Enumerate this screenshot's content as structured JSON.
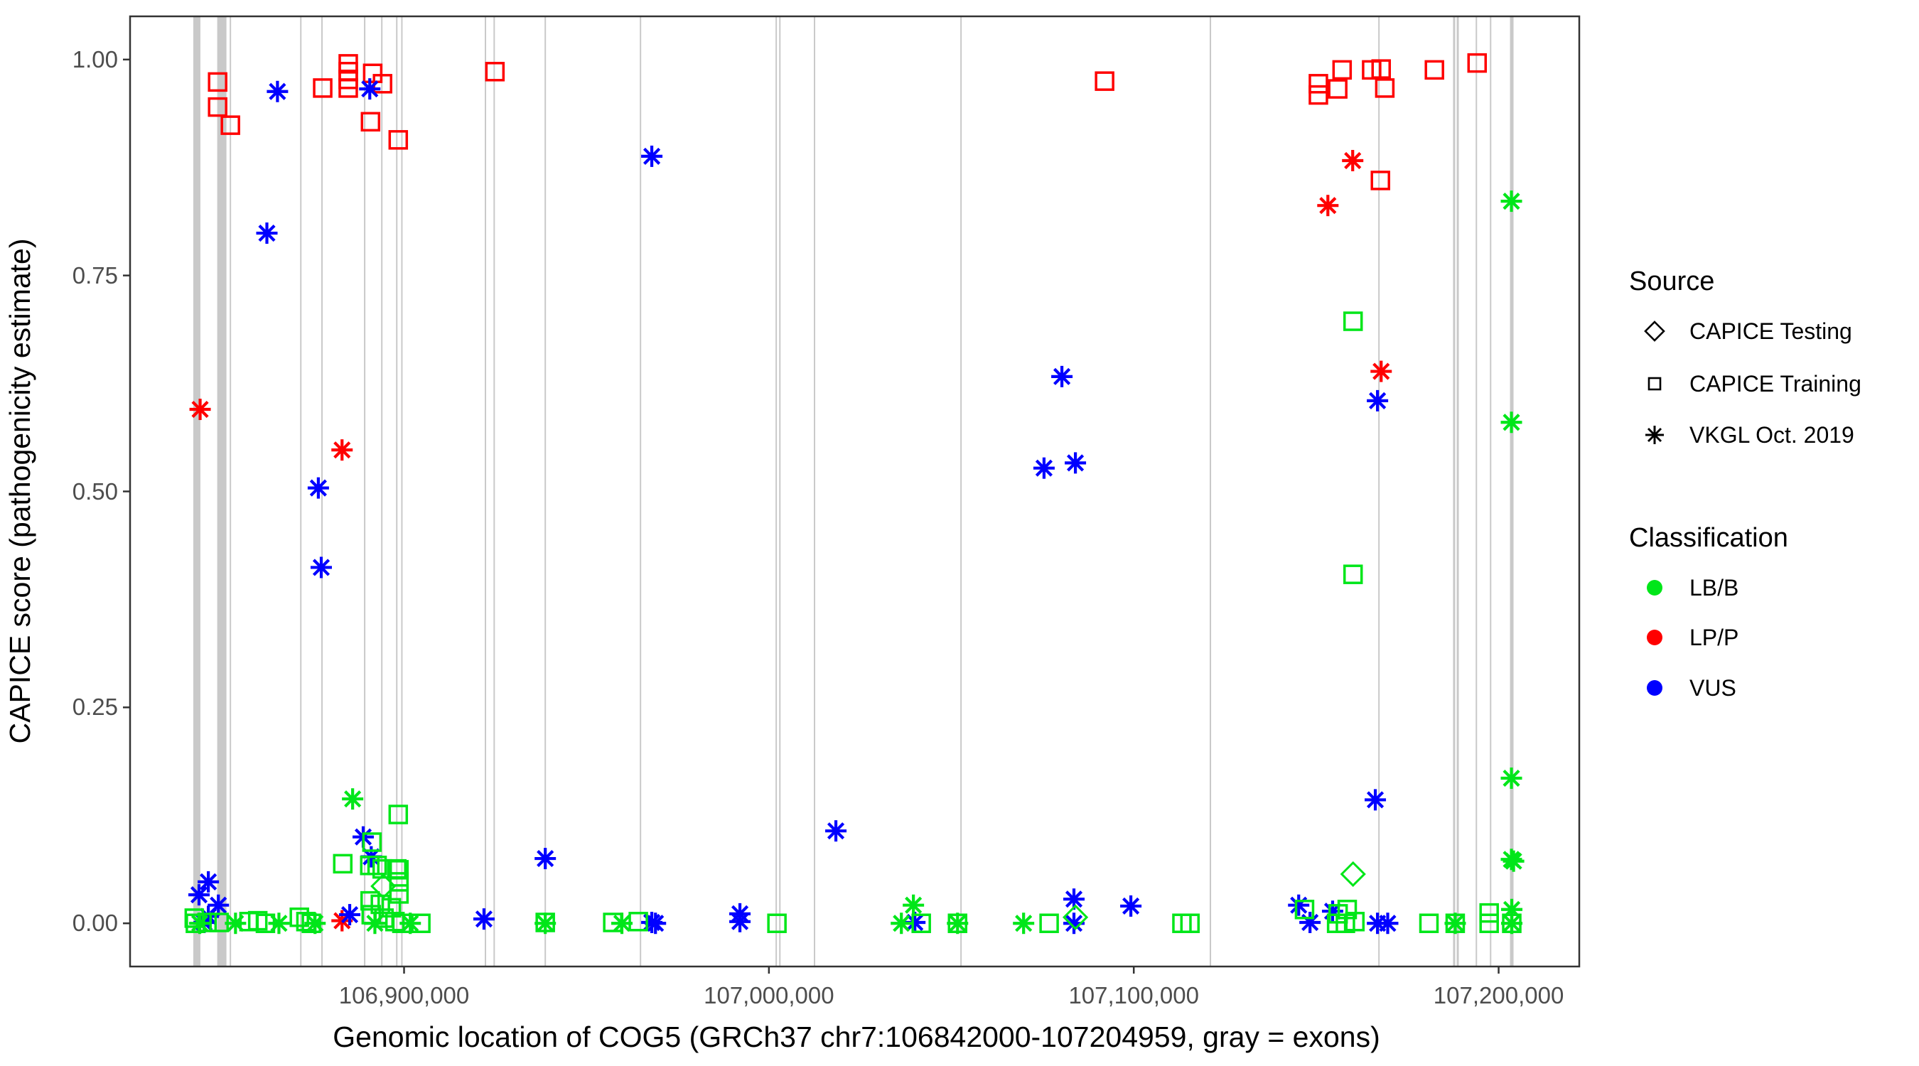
{
  "chart_data": {
    "type": "scatter",
    "xlabel": "Genomic location of COG5 (GRCh37 chr7:106842000-107204959, gray = exons)",
    "ylabel": "CAPICE score (pathogenicity estimate)",
    "x_domain": [
      106824900,
      107222100
    ],
    "y_domain": [
      -0.05,
      1.05
    ],
    "grid": "off",
    "legend_position": "right",
    "x_ticks": [
      {
        "value": 106900000,
        "label": "106,900,000"
      },
      {
        "value": 107000000,
        "label": "107,000,000"
      },
      {
        "value": 107100000,
        "label": "107,100,000"
      },
      {
        "value": 107200000,
        "label": "107,200,000"
      }
    ],
    "y_ticks": [
      {
        "value": 0.0,
        "label": "0.00"
      },
      {
        "value": 0.25,
        "label": "0.25"
      },
      {
        "value": 0.5,
        "label": "0.50"
      },
      {
        "value": 0.75,
        "label": "0.75"
      },
      {
        "value": 1.0,
        "label": "1.00"
      }
    ],
    "colors": {
      "LB": "#00E619",
      "LP": "#FF0000",
      "VUS": "#0000FF",
      "exon": "#C9C9C9",
      "axis": "#333333",
      "tick_text": "#4D4D4D"
    },
    "legend": {
      "source_title": "Source",
      "source_items": [
        {
          "label": "CAPICE Testing",
          "shape": "diamond"
        },
        {
          "label": "CAPICE Training",
          "shape": "square"
        },
        {
          "label": "VKGL Oct. 2019",
          "shape": "asterisk"
        }
      ],
      "classification_title": "Classification",
      "classification_items": [
        {
          "label": "LB/B",
          "color_key": "LB"
        },
        {
          "label": "LP/P",
          "color_key": "LP"
        },
        {
          "label": "VUS",
          "color_key": "VUS"
        }
      ]
    },
    "exons": [
      {
        "pos": 106843200,
        "w": 10
      },
      {
        "pos": 106850050,
        "w": 13
      },
      {
        "pos": 106852400,
        "w": 2
      },
      {
        "pos": 106871700,
        "w": 2
      },
      {
        "pos": 106877500,
        "w": 2
      },
      {
        "pos": 106889200,
        "w": 2
      },
      {
        "pos": 106893900,
        "w": 2
      },
      {
        "pos": 106898000,
        "w": 2
      },
      {
        "pos": 106899400,
        "w": 2
      },
      {
        "pos": 106922300,
        "w": 2
      },
      {
        "pos": 106924700,
        "w": 2
      },
      {
        "pos": 106938700,
        "w": 2
      },
      {
        "pos": 106964800,
        "w": 2
      },
      {
        "pos": 107002000,
        "w": 2
      },
      {
        "pos": 107003000,
        "w": 2
      },
      {
        "pos": 107012500,
        "w": 2
      },
      {
        "pos": 107052650,
        "w": 2
      },
      {
        "pos": 107121000,
        "w": 2
      },
      {
        "pos": 107167200,
        "w": 2
      },
      {
        "pos": 107187800,
        "w": 3
      },
      {
        "pos": 107188800,
        "w": 3
      },
      {
        "pos": 107193900,
        "w": 2
      },
      {
        "pos": 107197800,
        "w": 2
      },
      {
        "pos": 107203600,
        "w": 5
      }
    ],
    "points": [
      [
        106848900,
        0.974,
        "LP",
        "train"
      ],
      [
        106848900,
        0.945,
        "LP",
        "train"
      ],
      [
        106852400,
        0.924,
        "LP",
        "train"
      ],
      [
        106877700,
        0.967,
        "LP",
        "train"
      ],
      [
        106884700,
        0.995,
        "LP",
        "train"
      ],
      [
        106884700,
        0.986,
        "LP",
        "train"
      ],
      [
        106884700,
        0.977,
        "LP",
        "train"
      ],
      [
        106884700,
        0.967,
        "LP",
        "train"
      ],
      [
        106891400,
        0.984,
        "LP",
        "train"
      ],
      [
        106894100,
        0.972,
        "LP",
        "train"
      ],
      [
        106890800,
        0.928,
        "LP",
        "train"
      ],
      [
        106898400,
        0.907,
        "LP",
        "train"
      ],
      [
        106924900,
        0.986,
        "LP",
        "train"
      ],
      [
        107092000,
        0.975,
        "LP",
        "train"
      ],
      [
        107150600,
        0.972,
        "LP",
        "train"
      ],
      [
        107150600,
        0.959,
        "LP",
        "train"
      ],
      [
        107155900,
        0.966,
        "LP",
        "train"
      ],
      [
        107157100,
        0.988,
        "LP",
        "train"
      ],
      [
        107165200,
        0.988,
        "LP",
        "train"
      ],
      [
        107167800,
        0.989,
        "LP",
        "train"
      ],
      [
        107168800,
        0.967,
        "LP",
        "train"
      ],
      [
        107182400,
        0.988,
        "LP",
        "train"
      ],
      [
        107194100,
        0.996,
        "LP",
        "train"
      ],
      [
        107167600,
        0.86,
        "LP",
        "train"
      ],
      [
        106844100,
        0.595,
        "LP",
        "vkgl"
      ],
      [
        106883000,
        0.548,
        "LP",
        "vkgl"
      ],
      [
        107153200,
        0.831,
        "LP",
        "vkgl"
      ],
      [
        107160000,
        0.883,
        "LP",
        "vkgl"
      ],
      [
        107167800,
        0.639,
        "LP",
        "vkgl"
      ],
      [
        106883000,
        0.003,
        "LP",
        "vkgl"
      ],
      [
        106865300,
        0.963,
        "VUS",
        "vkgl"
      ],
      [
        106890600,
        0.966,
        "VUS",
        "vkgl"
      ],
      [
        106967900,
        0.888,
        "VUS",
        "vkgl"
      ],
      [
        106862400,
        0.799,
        "VUS",
        "vkgl"
      ],
      [
        107080300,
        0.633,
        "VUS",
        "vkgl"
      ],
      [
        107166800,
        0.605,
        "VUS",
        "vkgl"
      ],
      [
        107075400,
        0.527,
        "VUS",
        "vkgl"
      ],
      [
        107084000,
        0.533,
        "VUS",
        "vkgl"
      ],
      [
        106876500,
        0.504,
        "VUS",
        "vkgl"
      ],
      [
        106877300,
        0.412,
        "VUS",
        "vkgl"
      ],
      [
        106888800,
        0.1,
        "VUS",
        "vkgl"
      ],
      [
        106891000,
        0.077,
        "VUS",
        "vkgl"
      ],
      [
        106938700,
        0.075,
        "VUS",
        "vkgl"
      ],
      [
        107018350,
        0.107,
        "VUS",
        "vkgl"
      ],
      [
        107166200,
        0.143,
        "VUS",
        "vkgl"
      ],
      [
        106846350,
        0.048,
        "VUS",
        "vkgl"
      ],
      [
        106843800,
        0.033,
        "VUS",
        "vkgl"
      ],
      [
        106849100,
        0.021,
        "VUS",
        "vkgl"
      ],
      [
        106846350,
        0.008,
        "VUS",
        "vkgl"
      ],
      [
        106845200,
        0.001,
        "VUS",
        "vkgl"
      ],
      [
        106885100,
        0.01,
        "VUS",
        "vkgl"
      ],
      [
        106921900,
        0.005,
        "VUS",
        "vkgl"
      ],
      [
        106967900,
        0.001,
        "VUS",
        "vkgl"
      ],
      [
        106968900,
        0.0,
        "VUS",
        "vkgl"
      ],
      [
        106992050,
        0.011,
        "VUS",
        "vkgl"
      ],
      [
        106992050,
        0.002,
        "VUS",
        "vkgl"
      ],
      [
        107040000,
        0.001,
        "VUS",
        "vkgl"
      ],
      [
        107083600,
        0.028,
        "VUS",
        "vkgl"
      ],
      [
        107083600,
        0.0,
        "VUS",
        "vkgl"
      ],
      [
        107099200,
        0.02,
        "VUS",
        "vkgl"
      ],
      [
        107145200,
        0.021,
        "VUS",
        "vkgl"
      ],
      [
        107148300,
        0.001,
        "VUS",
        "vkgl"
      ],
      [
        107154500,
        0.014,
        "VUS",
        "vkgl"
      ],
      [
        107166800,
        0.0,
        "VUS",
        "vkgl"
      ],
      [
        107169600,
        0.0,
        "VUS",
        "vkgl"
      ],
      [
        107160100,
        0.697,
        "LB",
        "train"
      ],
      [
        107160100,
        0.404,
        "LB",
        "train"
      ],
      [
        106898400,
        0.126,
        "LB",
        "train"
      ],
      [
        106891200,
        0.094,
        "LB",
        "train"
      ],
      [
        106883200,
        0.069,
        "LB",
        "train"
      ],
      [
        106890600,
        0.067,
        "LB",
        "train"
      ],
      [
        106892600,
        0.067,
        "LB",
        "train"
      ],
      [
        106894000,
        0.063,
        "LB",
        "train"
      ],
      [
        106898000,
        0.063,
        "LB",
        "train"
      ],
      [
        106898600,
        0.062,
        "LB",
        "train"
      ],
      [
        106898600,
        0.048,
        "LB",
        "train"
      ],
      [
        106898600,
        0.034,
        "LB",
        "train"
      ],
      [
        106890700,
        0.026,
        "LB",
        "train"
      ],
      [
        106893500,
        0.022,
        "LB",
        "train"
      ],
      [
        106896500,
        0.018,
        "LB",
        "train"
      ],
      [
        106891000,
        0.01,
        "LB",
        "train"
      ],
      [
        106894500,
        0.006,
        "LB",
        "train"
      ],
      [
        106897500,
        0.002,
        "LB",
        "train"
      ],
      [
        106899400,
        0.0,
        "LB",
        "train"
      ],
      [
        106842500,
        0.006,
        "LB",
        "train"
      ],
      [
        106846000,
        0.001,
        "LB",
        "train"
      ],
      [
        106849300,
        0.001,
        "LB",
        "train"
      ],
      [
        106842800,
        0.0,
        "LB",
        "train"
      ],
      [
        106857500,
        0.002,
        "LB",
        "train"
      ],
      [
        106859900,
        0.003,
        "LB",
        "train"
      ],
      [
        106862000,
        0.0,
        "LB",
        "train"
      ],
      [
        106871300,
        0.007,
        "LB",
        "train"
      ],
      [
        106873100,
        0.002,
        "LB",
        "train"
      ],
      [
        106874600,
        0.0,
        "LB",
        "train"
      ],
      [
        106904600,
        0.0,
        "LB",
        "train"
      ],
      [
        106938700,
        0.001,
        "LB",
        "train"
      ],
      [
        106957200,
        0.001,
        "LB",
        "train"
      ],
      [
        106964200,
        0.002,
        "LB",
        "train"
      ],
      [
        107002200,
        0.0,
        "LB",
        "train"
      ],
      [
        107041750,
        0.0,
        "LB",
        "train"
      ],
      [
        107051700,
        0.0,
        "LB",
        "train"
      ],
      [
        107076800,
        0.0,
        "LB",
        "train"
      ],
      [
        107113200,
        0.0,
        "LB",
        "train"
      ],
      [
        107115400,
        0.0,
        "LB",
        "train"
      ],
      [
        107146800,
        0.016,
        "LB",
        "train"
      ],
      [
        107156000,
        0.011,
        "LB",
        "train"
      ],
      [
        107158500,
        0.016,
        "LB",
        "train"
      ],
      [
        107155600,
        0.0,
        "LB",
        "train"
      ],
      [
        107158000,
        0.0,
        "LB",
        "train"
      ],
      [
        107160600,
        0.002,
        "LB",
        "train"
      ],
      [
        107180900,
        0.0,
        "LB",
        "train"
      ],
      [
        107188100,
        0.0,
        "LB",
        "train"
      ],
      [
        107197400,
        0.012,
        "LB",
        "train"
      ],
      [
        107197400,
        0.0,
        "LB",
        "train"
      ],
      [
        107203600,
        0.0,
        "LB",
        "train"
      ],
      [
        106885900,
        0.144,
        "LB",
        "vkgl"
      ],
      [
        106844000,
        0.0,
        "LB",
        "vkgl"
      ],
      [
        106853800,
        0.0,
        "LB",
        "vkgl"
      ],
      [
        106865700,
        0.0,
        "LB",
        "vkgl"
      ],
      [
        106875600,
        0.0,
        "LB",
        "vkgl"
      ],
      [
        106892000,
        0.0,
        "LB",
        "vkgl"
      ],
      [
        106901700,
        0.0,
        "LB",
        "vkgl"
      ],
      [
        106938700,
        0.0,
        "LB",
        "vkgl"
      ],
      [
        106959700,
        0.0,
        "LB",
        "vkgl"
      ],
      [
        107039600,
        0.021,
        "LB",
        "vkgl"
      ],
      [
        107036300,
        0.0,
        "LB",
        "vkgl"
      ],
      [
        107051700,
        0.0,
        "LB",
        "vkgl"
      ],
      [
        107069800,
        0.0,
        "LB",
        "vkgl"
      ],
      [
        107188100,
        0.0,
        "LB",
        "vkgl"
      ],
      [
        107203500,
        0.836,
        "LB",
        "vkgl"
      ],
      [
        107203500,
        0.58,
        "LB",
        "vkgl"
      ],
      [
        107203500,
        0.168,
        "LB",
        "vkgl"
      ],
      [
        107203500,
        0.074,
        "LB",
        "vkgl"
      ],
      [
        107204100,
        0.072,
        "LB",
        "vkgl"
      ],
      [
        107203600,
        0.016,
        "LB",
        "vkgl"
      ],
      [
        107203600,
        0.0,
        "LB",
        "vkgl"
      ],
      [
        106894300,
        0.043,
        "LB",
        "test"
      ],
      [
        107084000,
        0.007,
        "LB",
        "test"
      ],
      [
        107160100,
        0.057,
        "LB",
        "test"
      ]
    ]
  }
}
